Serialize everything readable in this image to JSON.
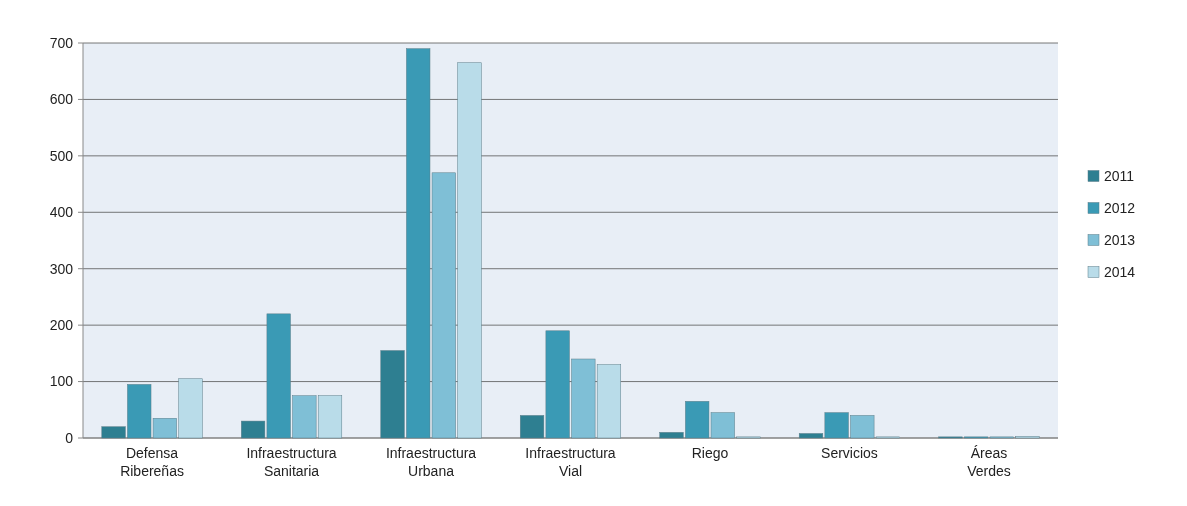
{
  "chart_data": {
    "type": "bar",
    "categories": [
      "Defensa Ribereñas",
      "Infraestructura Sanitaria",
      "Infraestructura Urbana",
      "Infraestructura Vial",
      "Riego",
      "Servicios",
      "Áreas Verdes"
    ],
    "series": [
      {
        "name": "2011",
        "color": "#2e7f91",
        "values": [
          20,
          30,
          155,
          40,
          10,
          8,
          2
        ]
      },
      {
        "name": "2012",
        "color": "#3a9ab5",
        "values": [
          95,
          220,
          690,
          190,
          65,
          45,
          2
        ]
      },
      {
        "name": "2013",
        "color": "#7fbfd6",
        "values": [
          35,
          75,
          470,
          140,
          45,
          40,
          2
        ]
      },
      {
        "name": "2014",
        "color": "#b9dce9",
        "values": [
          105,
          75,
          665,
          130,
          2,
          2,
          3
        ]
      }
    ],
    "ylim": [
      0,
      700
    ],
    "yticks": [
      0,
      100,
      200,
      300,
      400,
      500,
      600,
      700
    ],
    "grid": "y",
    "legend": "right"
  }
}
